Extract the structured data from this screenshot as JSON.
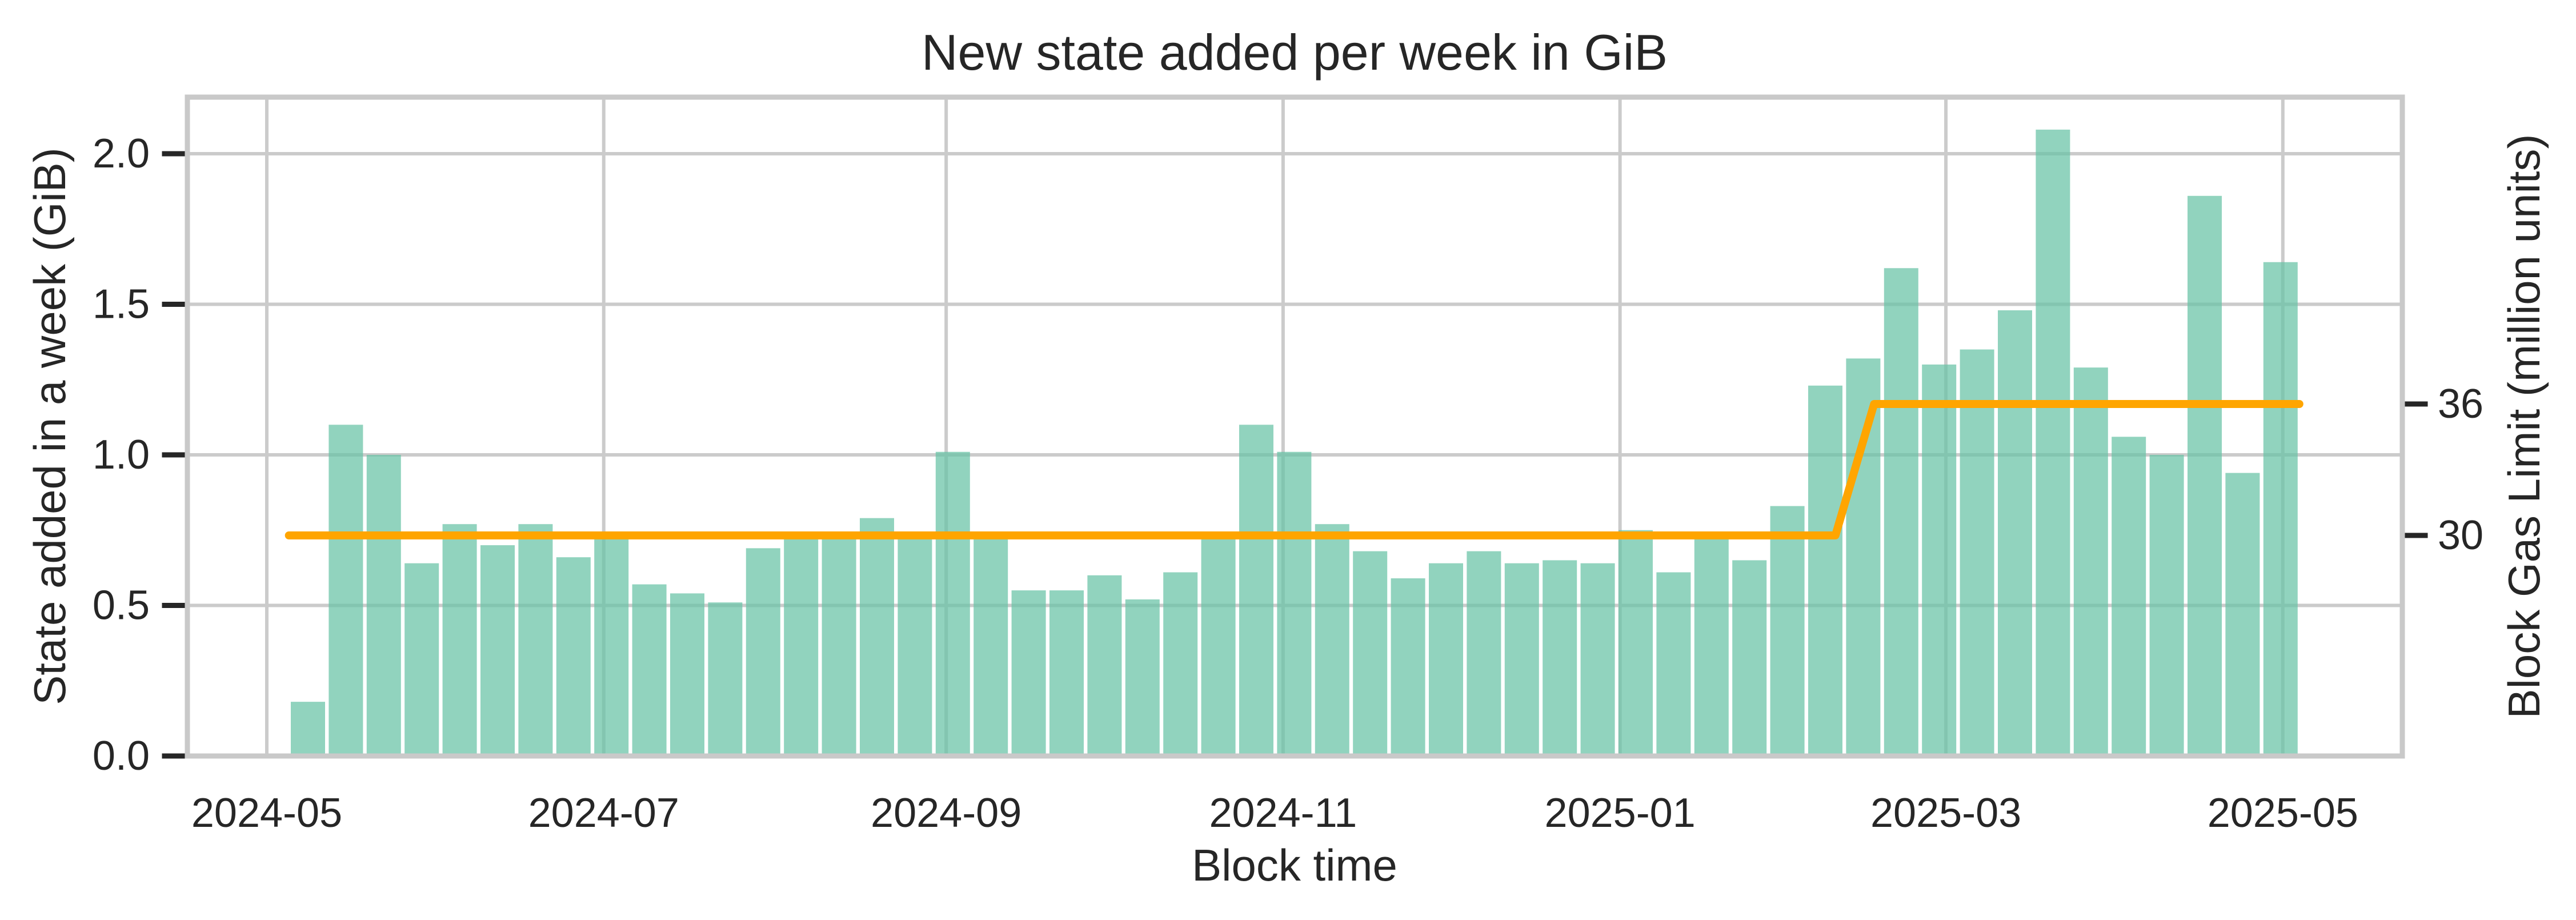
{
  "title": "New state added per week in GiB",
  "axes": {
    "x_label": "Block time",
    "y_left_label": "State added in a week (GiB)",
    "y_right_label": "Block Gas Limit (million units)",
    "x_tick_labels": [
      "2024-05",
      "2024-07",
      "2024-09",
      "2024-11",
      "2025-01",
      "2025-03",
      "2025-05"
    ],
    "y_left_tick_labels": [
      "0.0",
      "0.5",
      "1.0",
      "1.5",
      "2.0"
    ],
    "y_right_tick_labels": [
      "30",
      "36"
    ]
  },
  "colors": {
    "bar_fill": "#66c2a5",
    "bar_opacity": 0.72,
    "gas_limit_line": "#ffa500",
    "gridline": "#cbcbcb",
    "spine": "#c9c9c9",
    "text": "#262626",
    "tick_mark": "#262626",
    "background": "#ffffff"
  },
  "chart_data": {
    "type": "bar",
    "title": "New state added per week in GiB",
    "xlabel": "Block time",
    "ylabel_left": "State added in a week (GiB)",
    "ylabel_right": "Block Gas Limit (million units)",
    "grid": true,
    "legend_position": "none",
    "x_tick_dates": [
      "2024-05-01",
      "2024-07-01",
      "2024-09-01",
      "2024-11-01",
      "2025-01-01",
      "2025-03-01",
      "2025-05-01"
    ],
    "xlim_dates": [
      "2024-04-16",
      "2025-05-22"
    ],
    "ylim_left": [
      0.0,
      2.19
    ],
    "y_left_ticks": [
      0.0,
      0.5,
      1.0,
      1.5,
      2.0
    ],
    "y_right_ticks": [
      30,
      36
    ],
    "series": [
      {
        "name": "State added per week",
        "render": "bar",
        "axis": "left",
        "unit": "GiB",
        "weeks": [
          "2024-05-05",
          "2024-05-12",
          "2024-05-19",
          "2024-05-26",
          "2024-06-02",
          "2024-06-09",
          "2024-06-16",
          "2024-06-23",
          "2024-06-30",
          "2024-07-07",
          "2024-07-14",
          "2024-07-21",
          "2024-07-28",
          "2024-08-04",
          "2024-08-11",
          "2024-08-18",
          "2024-08-25",
          "2024-09-01",
          "2024-09-08",
          "2024-09-15",
          "2024-09-22",
          "2024-09-29",
          "2024-10-06",
          "2024-10-13",
          "2024-10-20",
          "2024-10-27",
          "2024-11-03",
          "2024-11-10",
          "2024-11-17",
          "2024-11-24",
          "2024-12-01",
          "2024-12-08",
          "2024-12-15",
          "2024-12-22",
          "2024-12-29",
          "2025-01-05",
          "2025-01-12",
          "2025-01-19",
          "2025-01-26",
          "2025-02-02",
          "2025-02-09",
          "2025-02-16",
          "2025-02-23",
          "2025-03-02",
          "2025-03-09",
          "2025-03-16",
          "2025-03-23",
          "2025-03-30",
          "2025-04-06",
          "2025-04-13",
          "2025-04-20",
          "2025-04-27",
          "2025-05-04"
        ],
        "values": [
          0.18,
          1.1,
          1.0,
          0.64,
          0.77,
          0.7,
          0.77,
          0.66,
          0.72,
          0.57,
          0.54,
          0.51,
          0.69,
          0.73,
          0.73,
          0.79,
          0.73,
          1.01,
          0.74,
          0.55,
          0.55,
          0.6,
          0.52,
          0.61,
          0.73,
          1.1,
          1.01,
          0.77,
          0.68,
          0.59,
          0.64,
          0.68,
          0.64,
          0.65,
          0.64,
          0.75,
          0.61,
          0.72,
          0.65,
          0.83,
          1.23,
          1.32,
          1.62,
          1.3,
          1.35,
          1.48,
          2.08,
          1.29,
          1.06,
          1.0,
          1.86,
          0.94,
          1.64
        ]
      },
      {
        "name": "Block Gas Limit",
        "render": "line",
        "axis": "right",
        "unit": "million units",
        "points": [
          [
            "2024-05-05",
            30
          ],
          [
            "2025-02-09",
            30
          ],
          [
            "2025-02-16",
            36
          ],
          [
            "2025-05-04",
            36
          ]
        ]
      }
    ]
  }
}
